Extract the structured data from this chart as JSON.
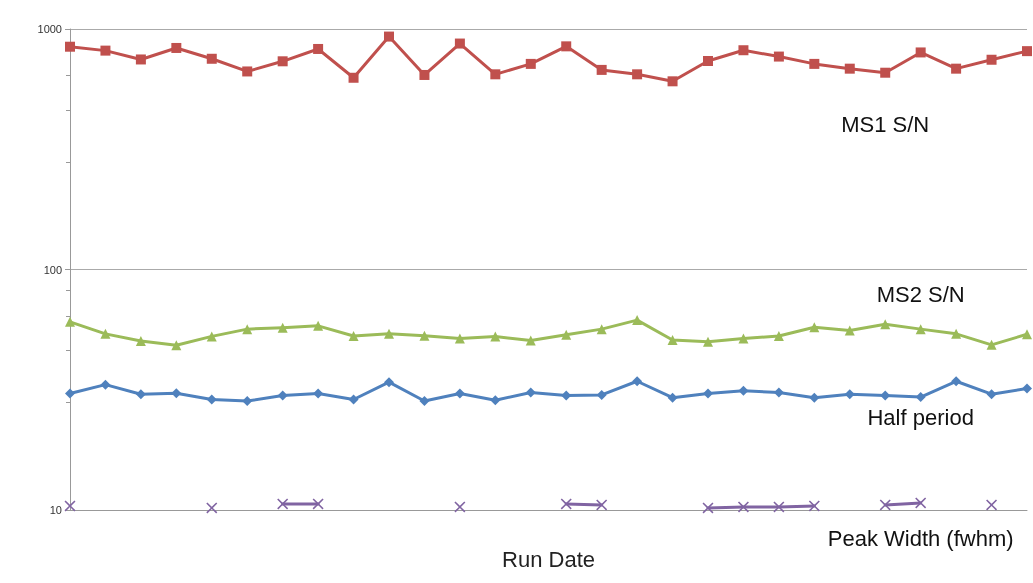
{
  "chart_data": {
    "type": "line",
    "xlabel": "Run Date",
    "categories": [
      null,
      null,
      null,
      null,
      null,
      null,
      null,
      null,
      null,
      null,
      null,
      null,
      null,
      null,
      null,
      null,
      null,
      null,
      null,
      null,
      null,
      null,
      null,
      null,
      null,
      null,
      null,
      null
    ],
    "series": [
      {
        "name": "MS1 S/N",
        "color": "#c0504d",
        "marker": "square",
        "values": [
          844,
          813,
          747,
          834,
          752,
          666,
          734,
          826,
          627,
          930,
          644,
          870,
          648,
          716,
          847,
          676,
          648,
          606,
          736,
          816,
          768,
          716,
          684,
          658,
          799,
          684,
          745,
          809
        ]
      },
      {
        "name": "MS2 S/N",
        "color": "#9bbb59",
        "marker": "triangle",
        "values": [
          60.6,
          54.0,
          50.4,
          48.4,
          52.7,
          56.5,
          57.3,
          58.3,
          52.9,
          54.0,
          53.0,
          51.6,
          52.6,
          50.7,
          53.5,
          56.5,
          61.6,
          50.9,
          50.1,
          51.6,
          52.9,
          57.5,
          55.8,
          59.2,
          56.5,
          54.0,
          48.6,
          53.8
        ]
      },
      {
        "name": "Half period",
        "color": "#4f81bd",
        "marker": "diamond",
        "values": [
          30.5,
          33.2,
          30.3,
          30.6,
          28.8,
          28.4,
          29.9,
          30.5,
          28.8,
          34.0,
          28.4,
          30.5,
          28.6,
          30.8,
          29.9,
          30.1,
          34.3,
          29.3,
          30.5,
          31.3,
          30.8,
          29.3,
          30.3,
          29.9,
          29.5,
          34.3,
          30.3,
          32.0
        ]
      },
      {
        "name": "Peak Width (fwhm)",
        "color": "#8064a2",
        "marker": "cross",
        "values": [
          10.4,
          null,
          null,
          null,
          10.2,
          null,
          10.6,
          10.6,
          null,
          null,
          null,
          10.3,
          null,
          null,
          10.6,
          10.5,
          null,
          null,
          10.2,
          10.3,
          10.3,
          10.4,
          null,
          10.5,
          10.7,
          null,
          10.5,
          null
        ]
      }
    ],
    "log": true,
    "ylim": [
      10,
      1000
    ],
    "yticks": [
      10,
      100,
      1000
    ],
    "grid": "y",
    "legend": false
  }
}
